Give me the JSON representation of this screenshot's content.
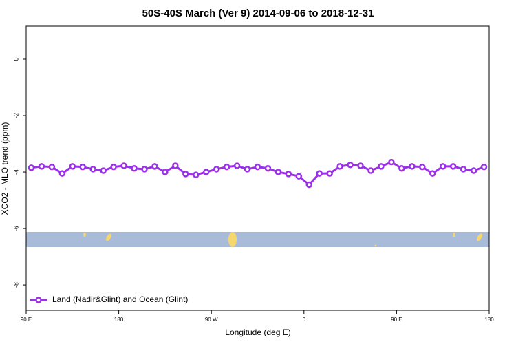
{
  "chart_data": {
    "type": "line",
    "title": "50S-40S March (Ver 9)   2014-09-06 to 2018-12-31",
    "xlabel": "Longitude (deg E)",
    "ylabel": "XCO2 - MLO trend (ppm)",
    "x": [
      95,
      105,
      115,
      125,
      135,
      145,
      155,
      165,
      175,
      185,
      195,
      205,
      215,
      225,
      235,
      245,
      255,
      265,
      275,
      285,
      295,
      305,
      315,
      325,
      335,
      345,
      355,
      365,
      375,
      385,
      395,
      405,
      415,
      425,
      435,
      445,
      455,
      465,
      475,
      485,
      495,
      505,
      515,
      525,
      535
    ],
    "series": [
      {
        "name": "Land (Nadir&Glint) and Ocean (Glint)",
        "color": "#9b30e8",
        "values": [
          -3.85,
          -3.8,
          -3.82,
          -4.05,
          -3.8,
          -3.82,
          -3.9,
          -3.95,
          -3.82,
          -3.78,
          -3.87,
          -3.9,
          -3.8,
          -4.0,
          -3.78,
          -4.07,
          -4.1,
          -4.0,
          -3.9,
          -3.82,
          -3.78,
          -3.9,
          -3.82,
          -3.87,
          -4.0,
          -4.07,
          -4.15,
          -4.45,
          -4.05,
          -4.05,
          -3.8,
          -3.75,
          -3.78,
          -3.95,
          -3.8,
          -3.65,
          -3.87,
          -3.8,
          -3.82,
          -4.05,
          -3.8,
          -3.8,
          -3.9,
          -3.95,
          -3.82
        ]
      }
    ],
    "xlim": [
      90,
      540
    ],
    "xticks": [
      {
        "value": 90,
        "label": "90 E"
      },
      {
        "value": 180,
        "label": "180"
      },
      {
        "value": 270,
        "label": "90 W"
      },
      {
        "value": 360,
        "label": "0"
      },
      {
        "value": 450,
        "label": "90 E"
      },
      {
        "value": 540,
        "label": "180"
      }
    ],
    "ylim": [
      -8.9,
      1.17
    ],
    "yticks": [
      0,
      -2,
      -4,
      -6,
      -8
    ],
    "legend": "bottom-left"
  }
}
